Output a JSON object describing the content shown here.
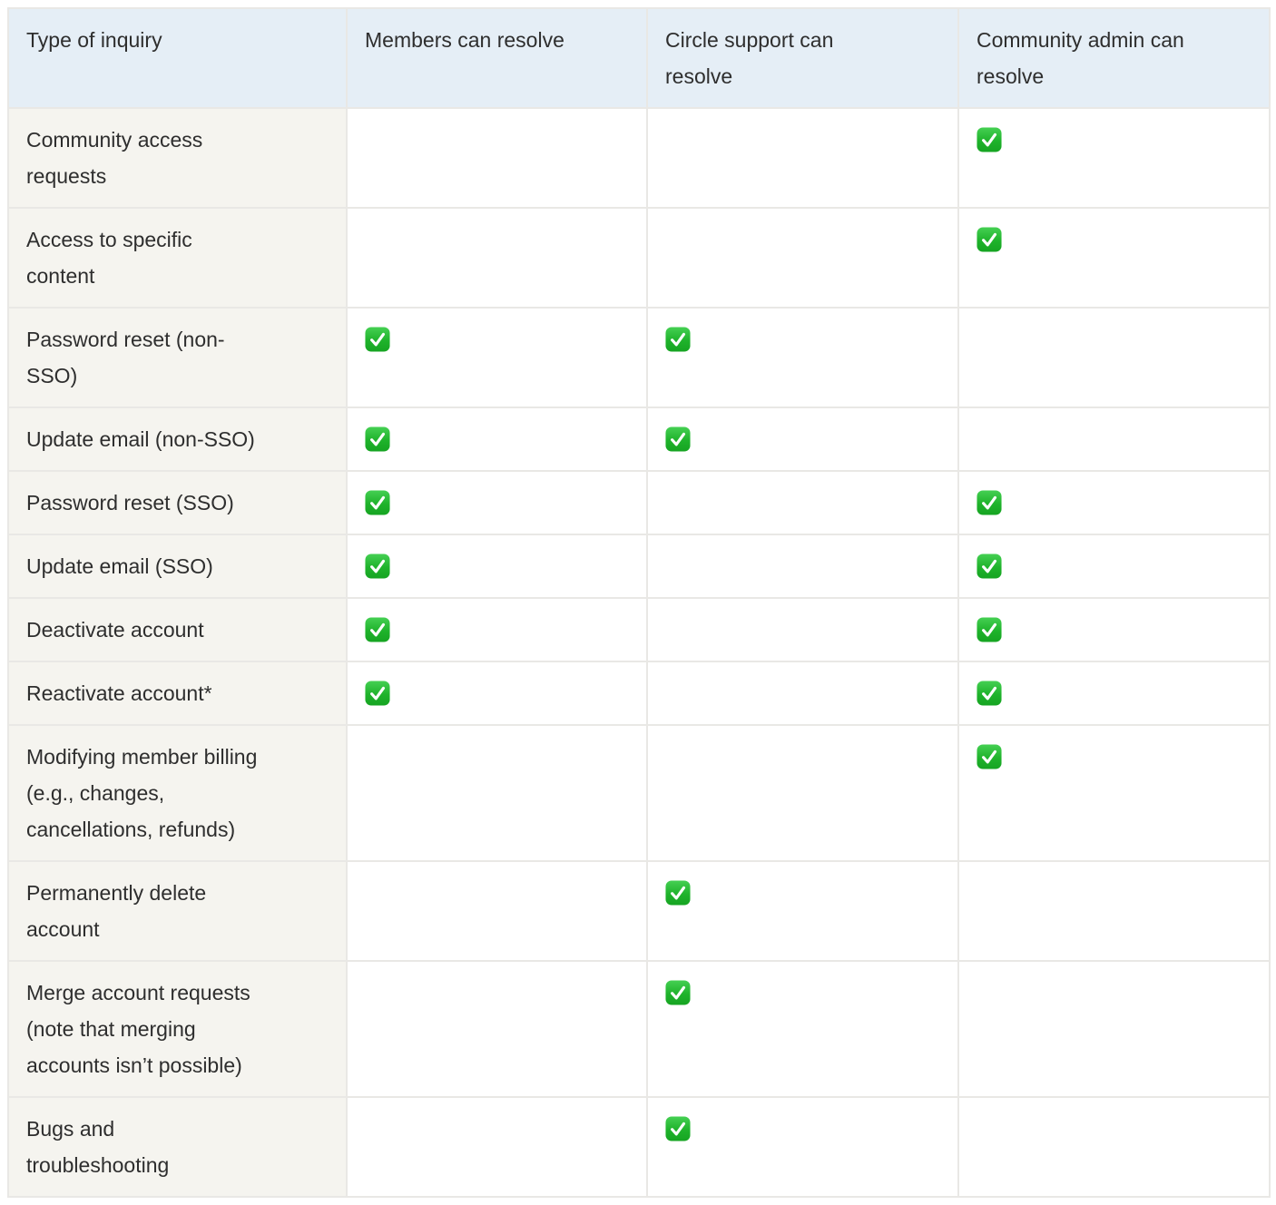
{
  "table": {
    "columns": [
      "Type of inquiry",
      "Members can resolve",
      "Circle support can resolve",
      "Community admin can resolve"
    ],
    "rows": [
      {
        "label": "Community access requests",
        "members": false,
        "circle_support": false,
        "community_admin": true
      },
      {
        "label": "Access to specific content",
        "members": false,
        "circle_support": false,
        "community_admin": true
      },
      {
        "label": "Password reset (non-SSO)",
        "members": true,
        "circle_support": true,
        "community_admin": false
      },
      {
        "label": "Update email (non-SSO)",
        "members": true,
        "circle_support": true,
        "community_admin": false
      },
      {
        "label": "Password reset (SSO)",
        "members": true,
        "circle_support": false,
        "community_admin": true
      },
      {
        "label": "Update email (SSO)",
        "members": true,
        "circle_support": false,
        "community_admin": true
      },
      {
        "label": "Deactivate account",
        "members": true,
        "circle_support": false,
        "community_admin": true
      },
      {
        "label": "Reactivate account*",
        "members": true,
        "circle_support": false,
        "community_admin": true
      },
      {
        "label": "Modifying member billing (e.g., changes, cancellations, refunds)",
        "members": false,
        "circle_support": false,
        "community_admin": true
      },
      {
        "label": "Permanently delete account",
        "members": false,
        "circle_support": true,
        "community_admin": false
      },
      {
        "label": "Merge account requests (note that merging accounts isn’t possible)",
        "members": false,
        "circle_support": true,
        "community_admin": false
      },
      {
        "label": "Bugs and troubleshooting",
        "members": false,
        "circle_support": true,
        "community_admin": false
      }
    ],
    "check_icon": {
      "name": "check-mark-green-emoji",
      "green_top": "#45d053",
      "green_bottom": "#16a422",
      "check_color": "#ffffff"
    },
    "colors": {
      "header_bg": "#e5eef6",
      "label_column_bg": "#f5f4ef",
      "cell_bg": "#ffffff",
      "border": "#e9e8e5",
      "text": "#2e2e2e"
    }
  }
}
